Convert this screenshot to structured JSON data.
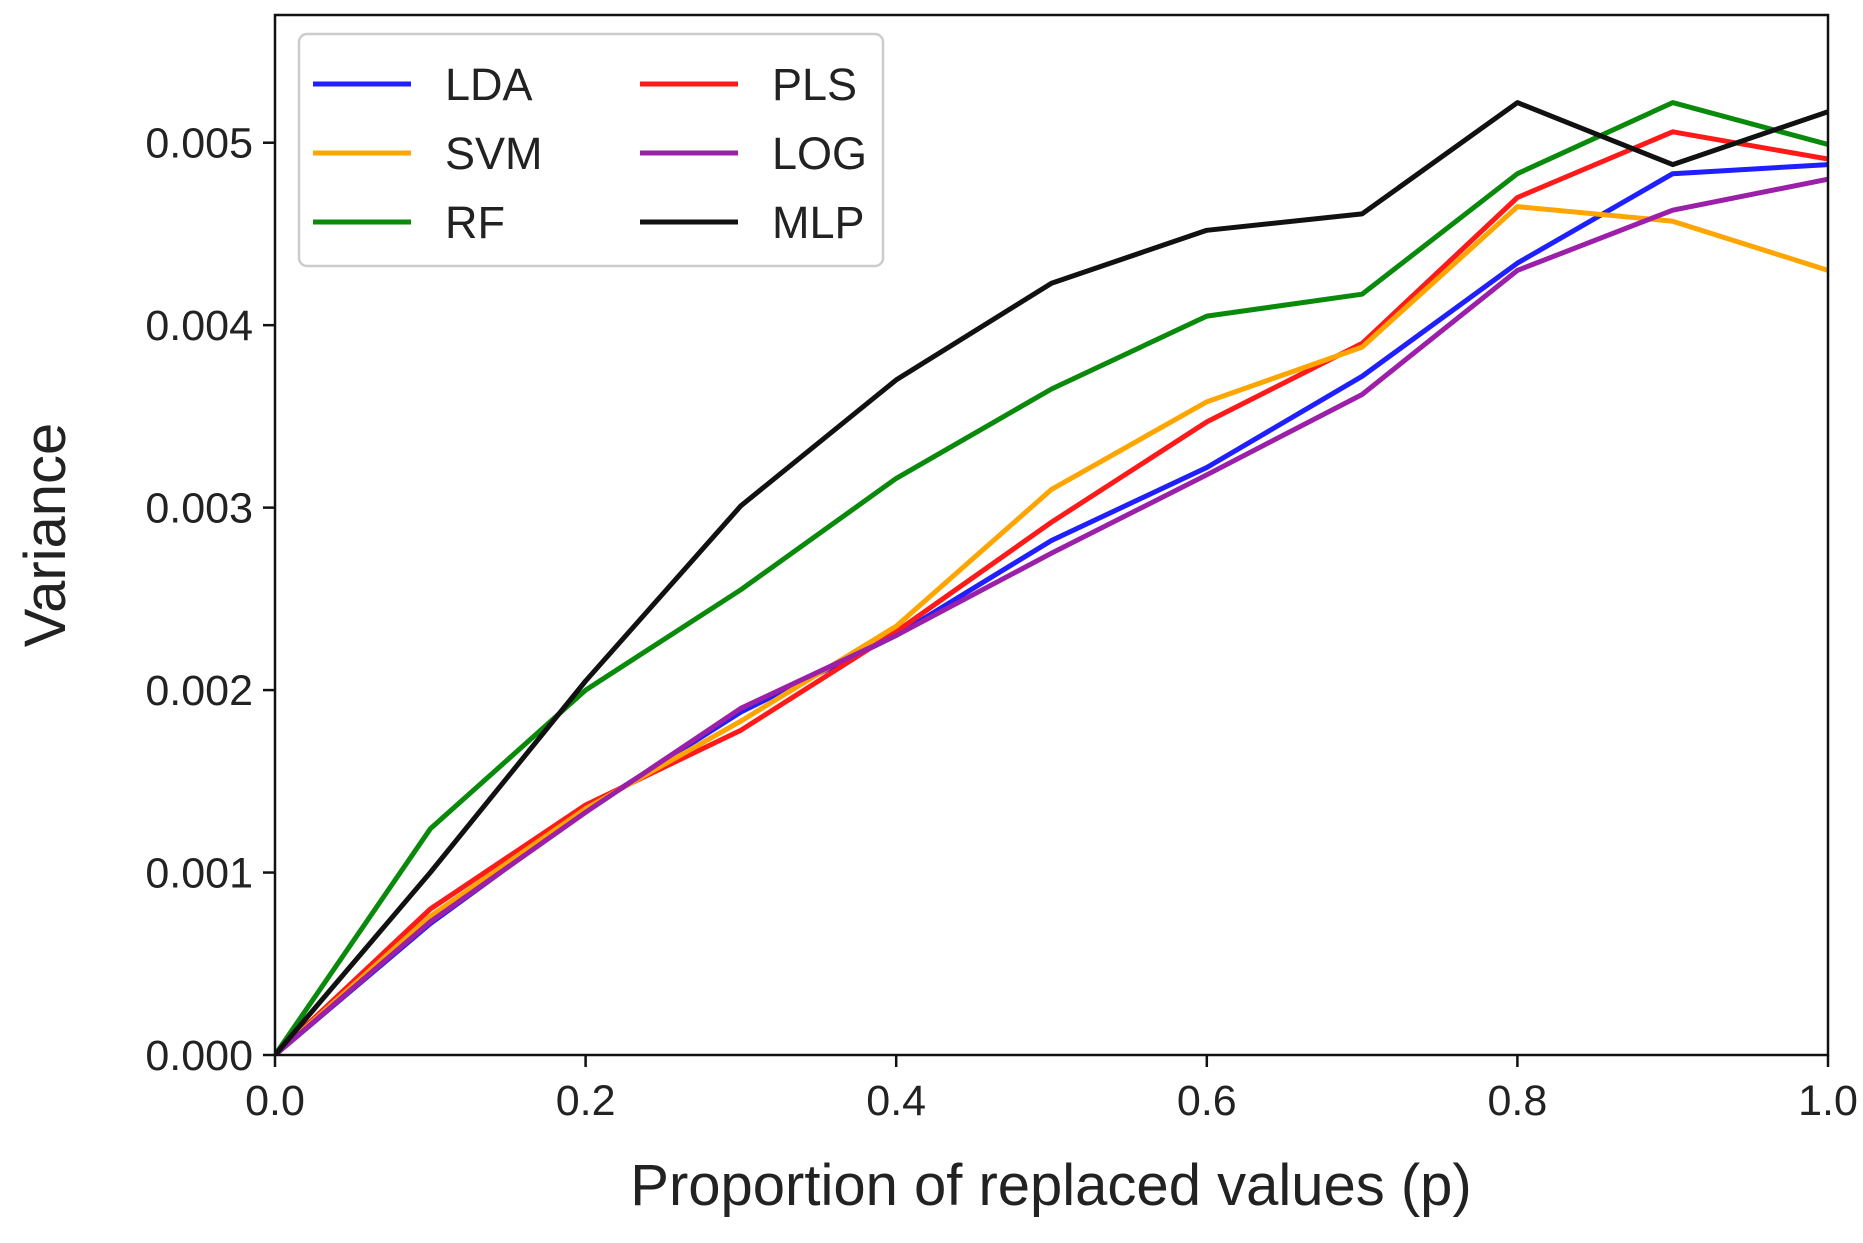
{
  "chart_data": {
    "type": "line",
    "title": "",
    "xlabel": "Proportion of replaced values (p)",
    "ylabel": "Variance",
    "x": [
      0.0,
      0.1,
      0.2,
      0.3,
      0.4,
      0.5,
      0.6,
      0.7,
      0.8,
      0.9,
      1.0
    ],
    "xlim": [
      0.0,
      1.0
    ],
    "ylim": [
      0.0,
      0.0057
    ],
    "xticks": [
      0.0,
      0.2,
      0.4,
      0.6,
      0.8,
      1.0
    ],
    "xtick_labels": [
      "0.0",
      "0.2",
      "0.4",
      "0.6",
      "0.8",
      "1.0"
    ],
    "yticks": [
      0.0,
      0.001,
      0.002,
      0.003,
      0.004,
      0.005
    ],
    "ytick_labels": [
      "0.000",
      "0.001",
      "0.002",
      "0.003",
      "0.004",
      "0.005"
    ],
    "grid": false,
    "legend_position": "top-left",
    "series": [
      {
        "name": "LDA",
        "color": "#1f1fff",
        "values": [
          0.0,
          0.00072,
          0.00134,
          0.00188,
          0.0023,
          0.00282,
          0.00322,
          0.00372,
          0.00434,
          0.00483,
          0.00488
        ]
      },
      {
        "name": "PLS",
        "color": "#ff1a1a",
        "values": [
          0.0,
          0.0008,
          0.00137,
          0.00178,
          0.00232,
          0.00292,
          0.00347,
          0.0039,
          0.0047,
          0.00506,
          0.00491
        ]
      },
      {
        "name": "SVM",
        "color": "#ffa500",
        "values": [
          0.0,
          0.00076,
          0.00135,
          0.00183,
          0.00235,
          0.0031,
          0.00358,
          0.00388,
          0.00465,
          0.00457,
          0.0043
        ]
      },
      {
        "name": "LOG",
        "color": "#9b1fa8",
        "values": [
          0.0,
          0.00073,
          0.00133,
          0.0019,
          0.0023,
          0.00275,
          0.00318,
          0.00362,
          0.0043,
          0.00463,
          0.0048
        ]
      },
      {
        "name": "RF",
        "color": "#0a8a0a",
        "values": [
          0.0,
          0.00124,
          0.002,
          0.00255,
          0.00316,
          0.00365,
          0.00405,
          0.00417,
          0.00483,
          0.00522,
          0.00499
        ]
      },
      {
        "name": "MLP",
        "color": "#111111",
        "values": [
          0.0,
          0.001,
          0.00205,
          0.00301,
          0.0037,
          0.00423,
          0.00452,
          0.00461,
          0.00522,
          0.00488,
          0.00517
        ]
      }
    ]
  }
}
